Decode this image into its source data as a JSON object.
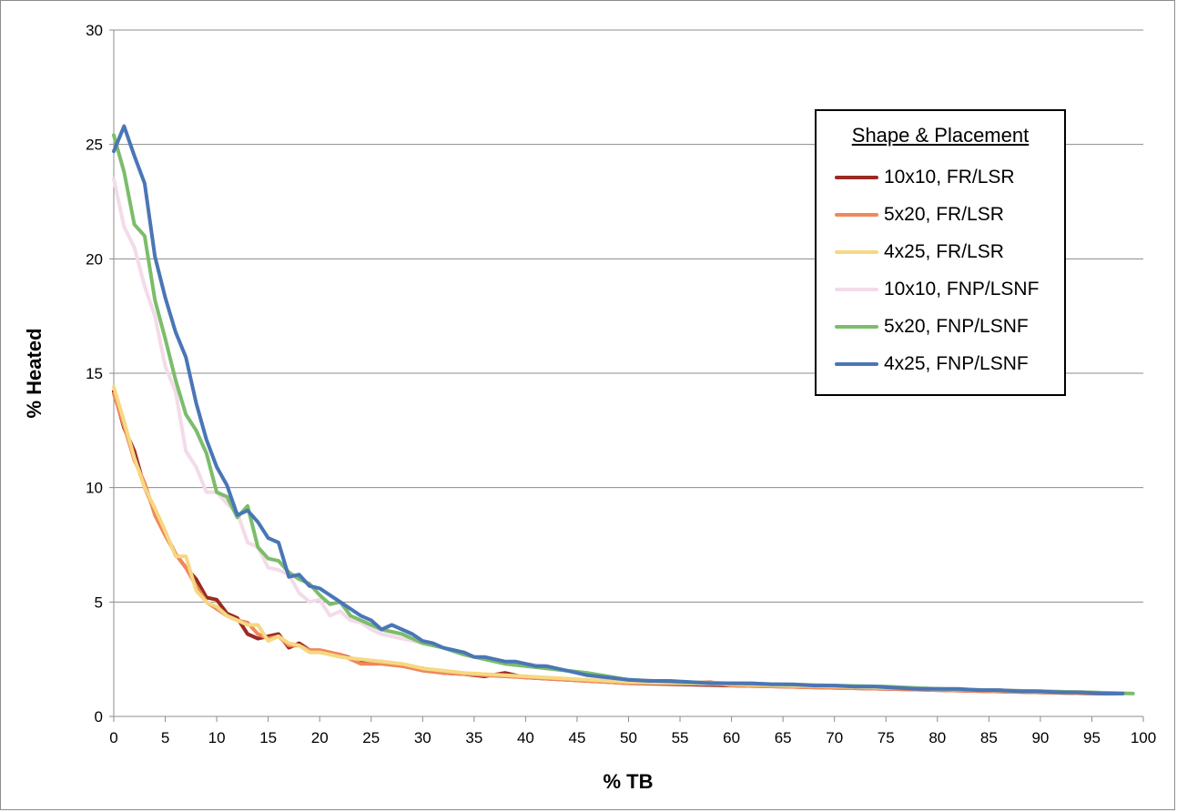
{
  "chart_data": {
    "type": "line",
    "title": "",
    "xlabel": "% TB",
    "ylabel": "% Heated",
    "xlim": [
      0,
      100
    ],
    "ylim": [
      0,
      30
    ],
    "x_ticks": [
      0,
      5,
      10,
      15,
      20,
      25,
      30,
      35,
      40,
      45,
      50,
      55,
      60,
      65,
      70,
      75,
      80,
      85,
      90,
      95,
      100
    ],
    "y_ticks": [
      0,
      5,
      10,
      15,
      20,
      25,
      30
    ],
    "grid": "horizontal",
    "legend": {
      "title": "Shape & Placement",
      "placement": "top-right"
    },
    "series": [
      {
        "name": "10x10, FR/LSR",
        "color": "#9b2a22",
        "x": [
          0,
          1,
          2,
          3,
          4,
          5,
          6,
          7,
          8,
          9,
          10,
          11,
          12,
          13,
          14,
          15,
          16,
          17,
          18,
          19,
          20,
          22,
          24,
          26,
          28,
          30,
          32,
          34,
          36,
          38,
          40,
          42,
          44,
          46,
          48,
          50,
          55,
          60,
          65,
          70,
          75,
          80,
          85,
          90,
          95,
          98
        ],
        "y": [
          14.2,
          12.6,
          11.6,
          10.0,
          9.0,
          8.0,
          7.1,
          6.5,
          6.0,
          5.2,
          5.1,
          4.5,
          4.3,
          3.6,
          3.4,
          3.5,
          3.6,
          3.0,
          3.2,
          2.9,
          2.8,
          2.7,
          2.4,
          2.4,
          2.2,
          2.1,
          1.9,
          1.85,
          1.75,
          1.9,
          1.7,
          1.65,
          1.6,
          1.55,
          1.5,
          1.45,
          1.4,
          1.35,
          1.3,
          1.25,
          1.2,
          1.15,
          1.1,
          1.05,
          1.0,
          1.0
        ]
      },
      {
        "name": "5x20, FR/LSR",
        "color": "#f0885a",
        "x": [
          0,
          1,
          2,
          3,
          4,
          5,
          6,
          7,
          8,
          9,
          10,
          11,
          12,
          13,
          14,
          15,
          16,
          17,
          18,
          19,
          20,
          22,
          24,
          26,
          28,
          30,
          32,
          34,
          36,
          38,
          40,
          42,
          44,
          46,
          48,
          50,
          55,
          58,
          60,
          65,
          70,
          75,
          80,
          85,
          90,
          95,
          98
        ],
        "y": [
          14.1,
          12.7,
          11.2,
          10.2,
          8.8,
          7.9,
          7.1,
          6.5,
          5.7,
          5.0,
          4.7,
          4.4,
          4.2,
          4.1,
          3.6,
          3.4,
          3.5,
          3.1,
          3.1,
          2.9,
          2.9,
          2.7,
          2.3,
          2.3,
          2.2,
          2.0,
          1.9,
          1.85,
          1.8,
          1.75,
          1.7,
          1.65,
          1.6,
          1.55,
          1.5,
          1.45,
          1.45,
          1.5,
          1.35,
          1.3,
          1.25,
          1.2,
          1.15,
          1.1,
          1.05,
          1.0,
          1.0
        ]
      },
      {
        "name": "4x25, FR/LSR",
        "color": "#f6d882",
        "x": [
          0,
          1,
          2,
          3,
          4,
          5,
          6,
          7,
          8,
          9,
          10,
          11,
          12,
          13,
          14,
          15,
          16,
          17,
          18,
          19,
          20,
          22,
          24,
          26,
          28,
          30,
          32,
          34,
          36,
          38,
          40,
          42,
          44,
          46,
          48,
          50,
          55,
          60,
          65,
          70,
          75,
          80,
          85,
          90,
          95,
          98
        ],
        "y": [
          14.4,
          12.9,
          11.3,
          10.0,
          9.1,
          8.1,
          7.0,
          7.0,
          5.5,
          5.0,
          4.8,
          4.4,
          4.2,
          4.0,
          4.0,
          3.3,
          3.5,
          3.2,
          3.1,
          2.8,
          2.8,
          2.6,
          2.5,
          2.4,
          2.3,
          2.1,
          2.0,
          1.9,
          1.85,
          1.8,
          1.75,
          1.7,
          1.65,
          1.6,
          1.55,
          1.5,
          1.45,
          1.4,
          1.35,
          1.3,
          1.25,
          1.2,
          1.15,
          1.1,
          1.05,
          1.0
        ]
      },
      {
        "name": "10x10, FNP/LSNF",
        "color": "#f3dbe9",
        "x": [
          0,
          1,
          2,
          3,
          4,
          5,
          6,
          7,
          8,
          9,
          10,
          11,
          12,
          13,
          14,
          15,
          16,
          17,
          18,
          19,
          20,
          21,
          22,
          23,
          24,
          25,
          26,
          28,
          30,
          32,
          34,
          36,
          38,
          40,
          42,
          44,
          46,
          48,
          50,
          55,
          60,
          65,
          70,
          75,
          80,
          85,
          90,
          95,
          98
        ],
        "y": [
          23.5,
          21.4,
          20.5,
          18.8,
          17.5,
          15.3,
          14.2,
          11.6,
          10.9,
          9.8,
          9.8,
          9.3,
          8.9,
          7.6,
          7.4,
          6.5,
          6.4,
          6.2,
          5.4,
          5.0,
          5.1,
          4.4,
          4.6,
          4.2,
          4.1,
          3.8,
          3.6,
          3.4,
          3.2,
          3.0,
          2.7,
          2.5,
          2.35,
          2.3,
          2.2,
          2.0,
          1.85,
          1.7,
          1.6,
          1.5,
          1.45,
          1.4,
          1.35,
          1.3,
          1.2,
          1.15,
          1.1,
          1.05,
          1.0
        ]
      },
      {
        "name": "5x20, FNP/LSNF",
        "color": "#7cbd6b",
        "x": [
          0,
          1,
          2,
          3,
          4,
          5,
          6,
          7,
          8,
          9,
          10,
          11,
          12,
          13,
          14,
          15,
          16,
          17,
          18,
          19,
          20,
          21,
          22,
          23,
          24,
          25,
          26,
          28,
          30,
          32,
          34,
          36,
          38,
          40,
          42,
          44,
          46,
          48,
          50,
          55,
          60,
          65,
          70,
          75,
          80,
          85,
          90,
          95,
          99
        ],
        "y": [
          25.4,
          23.8,
          21.5,
          21.0,
          18.2,
          16.5,
          14.7,
          13.2,
          12.5,
          11.5,
          9.8,
          9.6,
          8.7,
          9.2,
          7.4,
          6.9,
          6.8,
          6.3,
          6.0,
          5.8,
          5.3,
          4.9,
          5.0,
          4.4,
          4.2,
          4.0,
          3.8,
          3.6,
          3.2,
          3.0,
          2.7,
          2.5,
          2.3,
          2.2,
          2.1,
          2.0,
          1.9,
          1.75,
          1.6,
          1.5,
          1.45,
          1.4,
          1.35,
          1.3,
          1.2,
          1.15,
          1.1,
          1.05,
          1.0
        ]
      },
      {
        "name": "4x25, FNP/LSNF",
        "color": "#4a76b6",
        "x": [
          0,
          1,
          2,
          3,
          4,
          5,
          6,
          7,
          8,
          9,
          10,
          11,
          12,
          13,
          14,
          15,
          16,
          17,
          18,
          19,
          20,
          21,
          22,
          23,
          24,
          25,
          26,
          27,
          28,
          29,
          30,
          31,
          32,
          33,
          34,
          35,
          36,
          37,
          38,
          39,
          40,
          41,
          42,
          43,
          44,
          45,
          46,
          48,
          50,
          52,
          54,
          56,
          58,
          60,
          62,
          64,
          66,
          68,
          70,
          72,
          74,
          76,
          78,
          80,
          82,
          84,
          86,
          88,
          90,
          92,
          94,
          96,
          98
        ],
        "y": [
          24.7,
          25.8,
          24.5,
          23.3,
          20.1,
          18.3,
          16.8,
          15.7,
          13.7,
          12.1,
          10.9,
          10.1,
          8.8,
          9.0,
          8.5,
          7.8,
          7.6,
          6.1,
          6.2,
          5.7,
          5.6,
          5.3,
          5.0,
          4.7,
          4.4,
          4.2,
          3.8,
          4.0,
          3.8,
          3.6,
          3.3,
          3.2,
          3.0,
          2.9,
          2.8,
          2.6,
          2.6,
          2.5,
          2.4,
          2.4,
          2.3,
          2.2,
          2.2,
          2.1,
          2.0,
          1.9,
          1.8,
          1.7,
          1.6,
          1.55,
          1.55,
          1.5,
          1.45,
          1.45,
          1.45,
          1.4,
          1.4,
          1.35,
          1.35,
          1.3,
          1.3,
          1.25,
          1.2,
          1.2,
          1.2,
          1.15,
          1.15,
          1.1,
          1.1,
          1.05,
          1.05,
          1.0,
          1.0
        ]
      }
    ]
  }
}
